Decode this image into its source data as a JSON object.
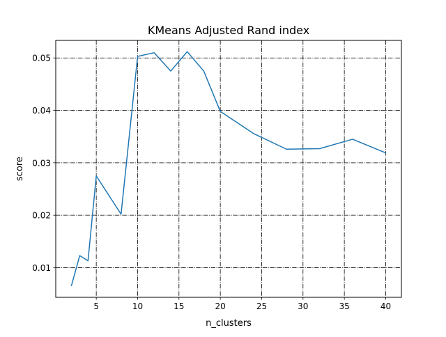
{
  "chart_data": {
    "type": "line",
    "title": "KMeans Adjusted Rand index",
    "xlabel": "n_clusters",
    "ylabel": "score",
    "xlim": [
      0.1,
      41.9
    ],
    "ylim": [
      0.00435,
      0.05335
    ],
    "xticks": [
      5,
      10,
      15,
      20,
      25,
      30,
      35,
      40
    ],
    "xtick_labels": [
      "5",
      "10",
      "15",
      "20",
      "25",
      "30",
      "35",
      "40"
    ],
    "yticks": [
      0.01,
      0.02,
      0.03,
      0.04,
      0.05
    ],
    "ytick_labels": [
      "0.01",
      "0.02",
      "0.03",
      "0.04",
      "0.05"
    ],
    "grid": true,
    "grid_style": "dashdot",
    "series": [
      {
        "color": "#1f77b4",
        "x": [
          2,
          3,
          4,
          5,
          8,
          10,
          12,
          14,
          16,
          18,
          20,
          24,
          28,
          32,
          36,
          40
        ],
        "y": [
          0.0066,
          0.0123,
          0.0113,
          0.0275,
          0.0202,
          0.0503,
          0.051,
          0.0475,
          0.0512,
          0.0475,
          0.0398,
          0.0356,
          0.0326,
          0.0327,
          0.0345,
          0.0319
        ]
      }
    ]
  }
}
